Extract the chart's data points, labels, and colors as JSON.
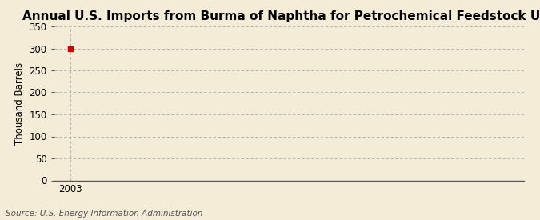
{
  "title": "Annual U.S. Imports from Burma of Naphtha for Petrochemical Feedstock Use",
  "ylabel": "Thousand Barrels",
  "source_text": "Source: U.S. Energy Information Administration",
  "data_x": [
    2003
  ],
  "data_y": [
    300
  ],
  "marker_color": "#cc0000",
  "ylim": [
    0,
    350
  ],
  "yticks": [
    0,
    50,
    100,
    150,
    200,
    250,
    300,
    350
  ],
  "xlim": [
    2002.4,
    2020
  ],
  "xticks": [
    2003
  ],
  "background_color": "#f5ecd7",
  "grid_color": "#aaaaaa",
  "spine_color": "#555555",
  "title_fontsize": 11,
  "label_fontsize": 8.5,
  "tick_fontsize": 8.5,
  "source_fontsize": 7.5
}
